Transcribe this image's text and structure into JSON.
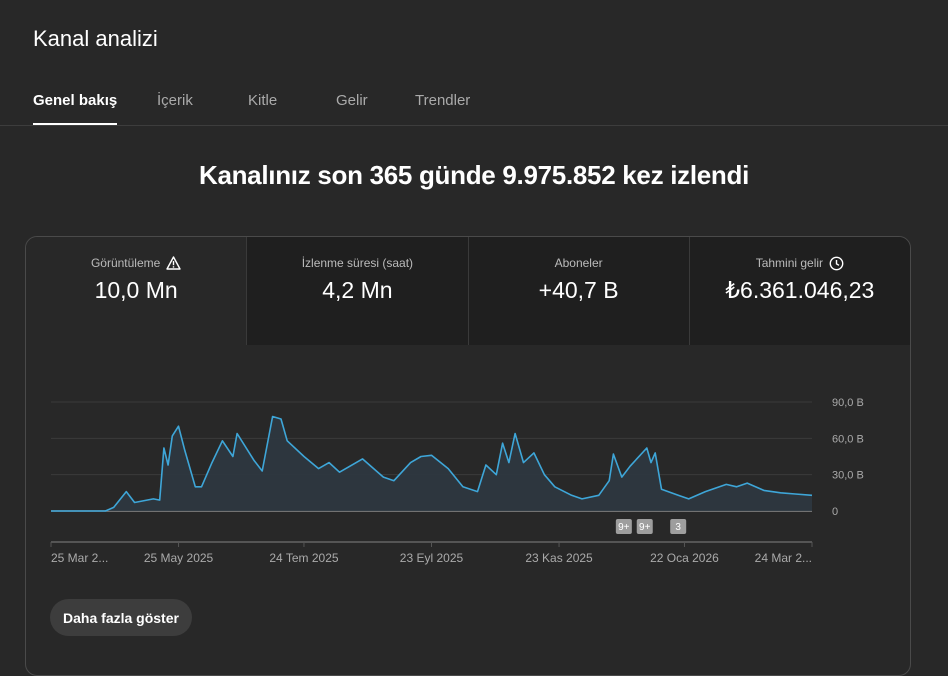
{
  "header": {
    "title": "Kanal analizi"
  },
  "tabs": [
    {
      "label": "Genel bakış",
      "active": true
    },
    {
      "label": "İçerik"
    },
    {
      "label": "Kitle"
    },
    {
      "label": "Gelir"
    },
    {
      "label": "Trendler"
    }
  ],
  "headline": "Kanalınız son 365 günde 9.975.852 kez izlendi",
  "metrics": [
    {
      "label": "Görüntüleme",
      "value": "10,0 Mn",
      "icon": "warning-icon"
    },
    {
      "label": "İzlenme süresi (saat)",
      "value": "4,2 Mn"
    },
    {
      "label": "Aboneler",
      "value": "+40,7 B"
    },
    {
      "label": "Tahmini gelir",
      "value": "₺6.361.046,23",
      "icon": "clock-icon"
    }
  ],
  "show_more_label": "Daha fazla göster",
  "colors": {
    "line": "#3ea6d8",
    "area": "#2d3740",
    "grid": "#3a3a3a"
  },
  "chart_data": {
    "type": "area",
    "x_tick_labels": [
      "25 Mar 2...",
      "25 May 2025",
      "24 Tem 2025",
      "23 Eyl 2025",
      "23 Kas 2025",
      "22 Oca 2026",
      "24 Mar 2..."
    ],
    "x_tick_dates": [
      "2025-03-25",
      "2025-05-25",
      "2025-07-24",
      "2025-09-23",
      "2025-11-23",
      "2026-01-22",
      "2026-03-24"
    ],
    "y_tick_labels": [
      "0",
      "30,0 B",
      "60,0 B",
      "90,0 B"
    ],
    "y_ticks": [
      0,
      30000,
      60000,
      90000
    ],
    "ylim": [
      0,
      90000
    ],
    "xlim": [
      "2025-03-25",
      "2026-03-24"
    ],
    "grid": true,
    "points": [
      [
        "2025-03-25",
        0
      ],
      [
        "2025-04-20",
        0
      ],
      [
        "2025-04-24",
        3000
      ],
      [
        "2025-04-30",
        16000
      ],
      [
        "2025-05-04",
        7000
      ],
      [
        "2025-05-13",
        10000
      ],
      [
        "2025-05-16",
        9000
      ],
      [
        "2025-05-18",
        52000
      ],
      [
        "2025-05-20",
        38000
      ],
      [
        "2025-05-22",
        62000
      ],
      [
        "2025-05-25",
        70000
      ],
      [
        "2025-05-28",
        50000
      ],
      [
        "2025-06-02",
        20000
      ],
      [
        "2025-06-05",
        20000
      ],
      [
        "2025-06-10",
        40000
      ],
      [
        "2025-06-15",
        58000
      ],
      [
        "2025-06-20",
        45000
      ],
      [
        "2025-06-22",
        64000
      ],
      [
        "2025-06-30",
        42000
      ],
      [
        "2025-07-04",
        33000
      ],
      [
        "2025-07-09",
        78000
      ],
      [
        "2025-07-13",
        76000
      ],
      [
        "2025-07-16",
        58000
      ],
      [
        "2025-07-24",
        45000
      ],
      [
        "2025-07-31",
        35000
      ],
      [
        "2025-08-05",
        40000
      ],
      [
        "2025-08-10",
        32000
      ],
      [
        "2025-08-21",
        43000
      ],
      [
        "2025-08-31",
        28000
      ],
      [
        "2025-09-05",
        25000
      ],
      [
        "2025-09-13",
        40000
      ],
      [
        "2025-09-18",
        45000
      ],
      [
        "2025-09-23",
        46000
      ],
      [
        "2025-10-01",
        35000
      ],
      [
        "2025-10-08",
        20000
      ],
      [
        "2025-10-15",
        16000
      ],
      [
        "2025-10-19",
        38000
      ],
      [
        "2025-10-24",
        30000
      ],
      [
        "2025-10-27",
        56000
      ],
      [
        "2025-10-30",
        40000
      ],
      [
        "2025-11-02",
        64000
      ],
      [
        "2025-11-06",
        40000
      ],
      [
        "2025-11-11",
        48000
      ],
      [
        "2025-11-16",
        30000
      ],
      [
        "2025-11-21",
        20000
      ],
      [
        "2025-11-29",
        13000
      ],
      [
        "2025-12-04",
        10000
      ],
      [
        "2025-12-12",
        13000
      ],
      [
        "2025-12-17",
        25000
      ],
      [
        "2025-12-19",
        47000
      ],
      [
        "2025-12-23",
        28000
      ],
      [
        "2025-12-27",
        37000
      ],
      [
        "2026-01-04",
        52000
      ],
      [
        "2026-01-06",
        40000
      ],
      [
        "2026-01-08",
        48000
      ],
      [
        "2026-01-11",
        18000
      ],
      [
        "2026-01-19",
        13000
      ],
      [
        "2026-01-24",
        10000
      ],
      [
        "2026-02-01",
        16000
      ],
      [
        "2026-02-11",
        22000
      ],
      [
        "2026-02-16",
        20000
      ],
      [
        "2026-02-21",
        23000
      ],
      [
        "2026-03-01",
        17000
      ],
      [
        "2026-03-09",
        15000
      ],
      [
        "2026-03-16",
        14000
      ],
      [
        "2026-03-24",
        13000
      ]
    ],
    "annotations": [
      {
        "date": "2025-12-24",
        "label": "9+"
      },
      {
        "date": "2026-01-03",
        "label": "9+"
      },
      {
        "date": "2026-01-19",
        "label": "3"
      }
    ]
  }
}
